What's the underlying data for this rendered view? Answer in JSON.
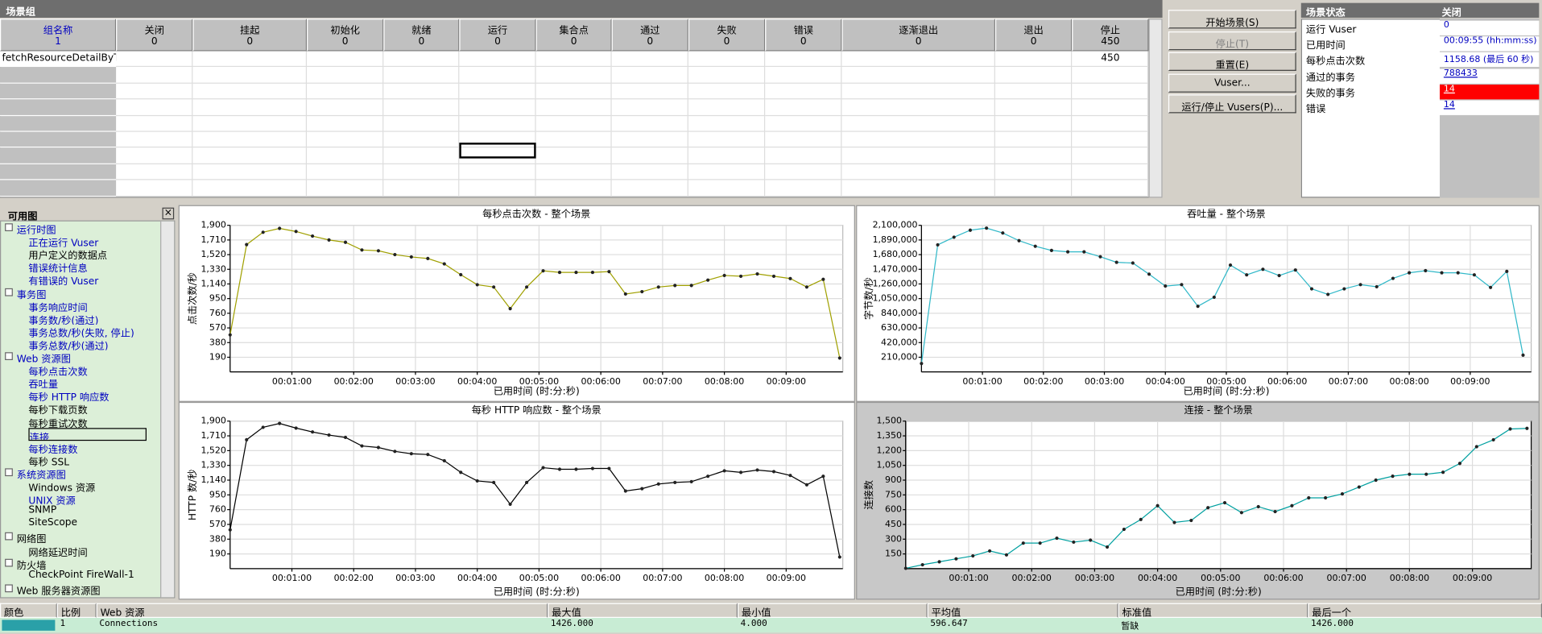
{
  "scenario_groups": {
    "title": "场景组",
    "columns": [
      {
        "name": "组名称",
        "count": 1
      },
      {
        "name": "关闭",
        "count": 0
      },
      {
        "name": "挂起",
        "count": 0
      },
      {
        "name": "初始化",
        "count": 0
      },
      {
        "name": "就绪",
        "count": 0
      },
      {
        "name": "运行",
        "count": 0
      },
      {
        "name": "集合点",
        "count": 0
      },
      {
        "name": "通过",
        "count": 0
      },
      {
        "name": "失败",
        "count": 0
      },
      {
        "name": "错误",
        "count": 0
      },
      {
        "name": "逐渐退出",
        "count": 0
      },
      {
        "name": "退出",
        "count": 0
      },
      {
        "name": "停止",
        "count": 450
      }
    ],
    "rows": [
      {
        "name": "fetchResourceDetailByType",
        "stopped": 450
      }
    ]
  },
  "buttons": [
    {
      "label": "开始场景(S)",
      "enabled": true
    },
    {
      "label": "停止(T)",
      "enabled": false
    },
    {
      "label": "重置(E)",
      "enabled": true
    },
    {
      "label": "Vuser...",
      "enabled": true
    },
    {
      "label": "运行/停止 Vusers(P)...",
      "enabled": true
    }
  ],
  "scenario_status": {
    "title": "场景状态",
    "state": "关闭",
    "rows": [
      {
        "label": "运行 Vuser",
        "value": "0"
      },
      {
        "label": "已用时间",
        "value": "00:09:55 (hh:mm:ss)"
      },
      {
        "label": "每秒点击次数",
        "value": "1158.68 (最后 60 秒)"
      },
      {
        "label": "通过的事务",
        "value": "788433",
        "link": true
      },
      {
        "label": "失败的事务",
        "value": "14",
        "link": true,
        "alert": true
      },
      {
        "label": "错误",
        "value": "14",
        "link": true
      }
    ]
  },
  "graph_tree": {
    "title": "可用图",
    "groups": [
      {
        "label": "运行时图",
        "color": "#0000c0",
        "items": [
          {
            "label": "正在运行 Vuser",
            "color": "#0000c0"
          },
          {
            "label": "用户定义的数据点",
            "color": "#000000"
          },
          {
            "label": "错误统计信息",
            "color": "#0000c0"
          },
          {
            "label": "有错误的 Vuser",
            "color": "#0000c0"
          }
        ]
      },
      {
        "label": "事务图",
        "color": "#0000c0",
        "items": [
          {
            "label": "事务响应时间",
            "color": "#0000c0"
          },
          {
            "label": "事务数/秒(通过)",
            "color": "#0000c0"
          },
          {
            "label": "事务总数/秒(失败, 停止)",
            "color": "#0000c0"
          },
          {
            "label": "事务总数/秒(通过)",
            "color": "#0000c0"
          }
        ]
      },
      {
        "label": "Web 资源图",
        "color": "#0000c0",
        "items": [
          {
            "label": "每秒点击次数",
            "color": "#0000c0"
          },
          {
            "label": "吞吐量",
            "color": "#0000c0"
          },
          {
            "label": "每秒 HTTP 响应数",
            "color": "#0000c0"
          },
          {
            "label": "每秒下载页数",
            "color": "#000000"
          },
          {
            "label": "每秒重试次数",
            "color": "#000000"
          },
          {
            "label": "连接",
            "color": "#0000c0",
            "selected": true
          },
          {
            "label": "每秒连接数",
            "color": "#0000c0"
          },
          {
            "label": "每秒 SSL",
            "color": "#000000"
          }
        ]
      },
      {
        "label": "系统资源图",
        "color": "#0000c0",
        "items": [
          {
            "label": "Windows 资源",
            "color": "#000000"
          },
          {
            "label": "UNIX 资源",
            "color": "#0000c0"
          },
          {
            "label": "SNMP",
            "color": "#000000"
          },
          {
            "label": "SiteScope",
            "color": "#000000"
          }
        ]
      },
      {
        "label": "网络图",
        "color": "#000000",
        "items": [
          {
            "label": "网络延迟时间",
            "color": "#000000"
          }
        ]
      },
      {
        "label": "防火墙",
        "color": "#000000",
        "items": [
          {
            "label": "CheckPoint FireWall-1",
            "color": "#000000"
          }
        ]
      },
      {
        "label": "Web 服务器资源图",
        "color": "#000000",
        "items": []
      }
    ]
  },
  "chart_data": [
    {
      "type": "line",
      "title": "每秒点击次数 - 整个场景",
      "x_label": "已用时间 (时:分:秒)",
      "y_label": "点击次数/秒",
      "grid": true,
      "x": [
        0,
        16,
        32,
        48,
        64,
        80,
        96,
        112,
        128,
        144,
        160,
        176,
        192,
        208,
        224,
        240,
        256,
        272,
        288,
        304,
        320,
        336,
        352,
        368,
        384,
        400,
        416,
        432,
        448,
        464,
        480,
        496,
        512,
        528,
        544,
        560,
        576,
        592
      ],
      "series": [
        {
          "color": "#a0a000",
          "values": [
            480,
            1650,
            1810,
            1860,
            1820,
            1760,
            1710,
            1680,
            1580,
            1570,
            1520,
            1490,
            1470,
            1400,
            1260,
            1130,
            1100,
            820,
            1100,
            1310,
            1290,
            1290,
            1290,
            1300,
            1010,
            1040,
            1100,
            1120,
            1120,
            1190,
            1250,
            1240,
            1270,
            1240,
            1210,
            1100,
            1200,
            180
          ]
        }
      ],
      "xlim": [
        0,
        595
      ],
      "ylim": [
        0,
        1900
      ],
      "xticks": [
        {
          "value": 60,
          "label": "00:01:00"
        },
        {
          "value": 120,
          "label": "00:02:00"
        },
        {
          "value": 180,
          "label": "00:03:00"
        },
        {
          "value": 240,
          "label": "00:04:00"
        },
        {
          "value": 300,
          "label": "00:05:00"
        },
        {
          "value": 360,
          "label": "00:06:00"
        },
        {
          "value": 420,
          "label": "00:07:00"
        },
        {
          "value": 480,
          "label": "00:08:00"
        },
        {
          "value": 540,
          "label": "00:09:00"
        }
      ],
      "yticks": [
        190,
        380,
        570,
        760,
        950,
        {
          "value": 1140,
          "label": "1,140"
        },
        {
          "value": 1330,
          "label": "1,330"
        },
        {
          "value": 1520,
          "label": "1,520"
        },
        {
          "value": 1710,
          "label": "1,710"
        },
        {
          "value": 1900,
          "label": "1,900"
        }
      ]
    },
    {
      "type": "line",
      "title": "吞吐量 - 整个场景",
      "x_label": "已用时间 (时:分:秒)",
      "y_label": "字节数/秒",
      "grid": true,
      "x": [
        0,
        16,
        32,
        48,
        64,
        80,
        96,
        112,
        128,
        144,
        160,
        176,
        192,
        208,
        224,
        240,
        256,
        272,
        288,
        304,
        320,
        336,
        352,
        368,
        384,
        400,
        416,
        432,
        448,
        464,
        480,
        496,
        512,
        528,
        544,
        560,
        576,
        592
      ],
      "series": [
        {
          "color": "#30b8c8",
          "values": [
            120000,
            1820000,
            1930000,
            2030000,
            2060000,
            1990000,
            1880000,
            1800000,
            1740000,
            1720000,
            1720000,
            1650000,
            1570000,
            1560000,
            1400000,
            1230000,
            1250000,
            940000,
            1070000,
            1530000,
            1390000,
            1470000,
            1380000,
            1460000,
            1190000,
            1110000,
            1190000,
            1250000,
            1220000,
            1340000,
            1420000,
            1450000,
            1420000,
            1420000,
            1390000,
            1210000,
            1440000,
            240000
          ]
        }
      ],
      "xlim": [
        0,
        600
      ],
      "ylim": [
        0,
        2100000
      ],
      "xticks": [
        {
          "value": 60,
          "label": "00:01:00"
        },
        {
          "value": 120,
          "label": "00:02:00"
        },
        {
          "value": 180,
          "label": "00:03:00"
        },
        {
          "value": 240,
          "label": "00:04:00"
        },
        {
          "value": 300,
          "label": "00:05:00"
        },
        {
          "value": 360,
          "label": "00:06:00"
        },
        {
          "value": 420,
          "label": "00:07:00"
        },
        {
          "value": 480,
          "label": "00:08:00"
        },
        {
          "value": 540,
          "label": "00:09:00"
        }
      ],
      "yticks": [
        {
          "value": 210000,
          "label": "210,000"
        },
        {
          "value": 420000,
          "label": "420,000"
        },
        {
          "value": 630000,
          "label": "630,000"
        },
        {
          "value": 840000,
          "label": "840,000"
        },
        {
          "value": 1050000,
          "label": "1,050,000"
        },
        {
          "value": 1260000,
          "label": "1,260,000"
        },
        {
          "value": 1470000,
          "label": "1,470,000"
        },
        {
          "value": 1680000,
          "label": "1,680,000"
        },
        {
          "value": 1890000,
          "label": "1,890,000"
        },
        {
          "value": 2100000,
          "label": "2,100,000"
        }
      ]
    },
    {
      "type": "line",
      "title": "每秒 HTTP 响应数 - 整个场景",
      "x_label": "已用时间 (时:分:秒)",
      "y_label": "HTTP 数/秒",
      "grid": true,
      "x": [
        0,
        16,
        32,
        48,
        64,
        80,
        96,
        112,
        128,
        144,
        160,
        176,
        192,
        208,
        224,
        240,
        256,
        272,
        288,
        304,
        320,
        336,
        352,
        368,
        384,
        400,
        416,
        432,
        448,
        464,
        480,
        496,
        512,
        528,
        544,
        560,
        576,
        592
      ],
      "series": [
        {
          "color": "#000000",
          "values": [
            500,
            1660,
            1820,
            1870,
            1810,
            1760,
            1720,
            1690,
            1580,
            1560,
            1510,
            1480,
            1470,
            1390,
            1240,
            1130,
            1110,
            830,
            1110,
            1300,
            1280,
            1280,
            1290,
            1290,
            1000,
            1030,
            1090,
            1110,
            1120,
            1190,
            1260,
            1240,
            1270,
            1250,
            1200,
            1080,
            1190,
            150
          ]
        }
      ],
      "xlim": [
        0,
        595
      ],
      "ylim": [
        0,
        1900
      ],
      "xticks": [
        {
          "value": 60,
          "label": "00:01:00"
        },
        {
          "value": 120,
          "label": "00:02:00"
        },
        {
          "value": 180,
          "label": "00:03:00"
        },
        {
          "value": 240,
          "label": "00:04:00"
        },
        {
          "value": 300,
          "label": "00:05:00"
        },
        {
          "value": 360,
          "label": "00:06:00"
        },
        {
          "value": 420,
          "label": "00:07:00"
        },
        {
          "value": 480,
          "label": "00:08:00"
        },
        {
          "value": 540,
          "label": "00:09:00"
        }
      ],
      "yticks": [
        190,
        380,
        570,
        760,
        950,
        {
          "value": 1140,
          "label": "1,140"
        },
        {
          "value": 1330,
          "label": "1,330"
        },
        {
          "value": 1520,
          "label": "1,520"
        },
        {
          "value": 1710,
          "label": "1,710"
        },
        {
          "value": 1900,
          "label": "1,900"
        }
      ]
    },
    {
      "type": "line",
      "title": "连接 - 整个场景",
      "x_label": "已用时间 (时:分:秒)",
      "y_label": "连接数",
      "grid": true,
      "x": [
        0,
        16,
        32,
        48,
        64,
        80,
        96,
        112,
        128,
        144,
        160,
        176,
        192,
        208,
        224,
        240,
        256,
        272,
        288,
        304,
        320,
        336,
        352,
        368,
        384,
        400,
        416,
        432,
        448,
        464,
        480,
        496,
        512,
        528,
        544,
        560,
        576,
        592
      ],
      "series": [
        {
          "color": "#00a0a0",
          "values": [
            4,
            40,
            70,
            100,
            130,
            180,
            140,
            260,
            260,
            310,
            270,
            290,
            220,
            400,
            500,
            640,
            470,
            490,
            620,
            670,
            570,
            630,
            580,
            640,
            720,
            720,
            760,
            830,
            900,
            940,
            960,
            960,
            980,
            1070,
            1240,
            1310,
            1420,
            1426
          ]
        }
      ],
      "xlim": [
        0,
        596
      ],
      "ylim": [
        0,
        1500
      ],
      "xticks": [
        {
          "value": 60,
          "label": "00:01:00"
        },
        {
          "value": 120,
          "label": "00:02:00"
        },
        {
          "value": 180,
          "label": "00:03:00"
        },
        {
          "value": 240,
          "label": "00:04:00"
        },
        {
          "value": 300,
          "label": "00:05:00"
        },
        {
          "value": 360,
          "label": "00:06:00"
        },
        {
          "value": 420,
          "label": "00:07:00"
        },
        {
          "value": 480,
          "label": "00:08:00"
        },
        {
          "value": 540,
          "label": "00:09:00"
        }
      ],
      "yticks": [
        150,
        300,
        450,
        600,
        750,
        900,
        {
          "value": 1050,
          "label": "1,050"
        },
        {
          "value": 1200,
          "label": "1,200"
        },
        {
          "value": 1350,
          "label": "1,350"
        },
        {
          "value": 1500,
          "label": "1,500"
        }
      ]
    }
  ],
  "legend_table": {
    "headers": [
      "颜色",
      "比例",
      "Web 资源",
      "最大值",
      "最小值",
      "平均值",
      "标准值",
      "最后一个"
    ],
    "rows": [
      {
        "color": "#2aa0a8",
        "scale": "1",
        "resource": "Connections",
        "max": "1426.000",
        "min": "4.000",
        "avg": "596.647",
        "std": "暂缺",
        "last": "1426.000"
      }
    ]
  }
}
